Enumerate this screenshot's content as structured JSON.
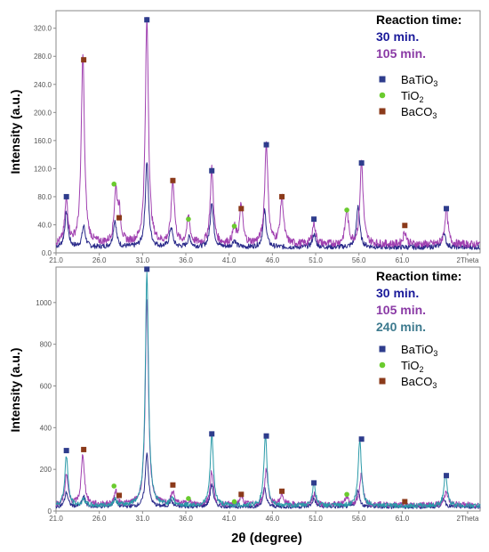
{
  "xlabel": "2θ (degree)",
  "colors": {
    "BaTiO3": "#2e3c8c",
    "TiO2": "#6acb2e",
    "BaCO3": "#8b3a1a",
    "series_30": "#2a2a8a",
    "series_105": "#a040b0",
    "series_240": "#2a9aa8",
    "time_30_text": "#1a1a9a",
    "time_105_text": "#8a3aa5",
    "time_240_text": "#3d7a8e"
  },
  "legend_phases": [
    {
      "main": "BaTiO",
      "sub": "3",
      "marker": "square",
      "color_key": "BaTiO3"
    },
    {
      "main": "TiO",
      "sub": "2",
      "marker": "circle",
      "color_key": "TiO2"
    },
    {
      "main": "BaCO",
      "sub": "3",
      "marker": "square",
      "color_key": "BaCO3"
    }
  ],
  "chart_data": [
    {
      "type": "line",
      "ylabel": "Intensity (a.u.)",
      "legend_title": "Reaction time:",
      "xlim": [
        21.0,
        70.0
      ],
      "ylim": [
        0,
        345
      ],
      "x_ticks": [
        "21.0",
        "26.0",
        "31.0",
        "36.0",
        "41.0",
        "46.0",
        "51.0",
        "56.0",
        "61.0",
        "2Theta"
      ],
      "y_ticks": [
        0,
        40,
        80,
        120,
        160,
        200,
        240,
        280,
        320
      ],
      "y_tick_labels": [
        "0.0",
        "40.0",
        "80.0",
        "120.0",
        "160.0",
        "200.0",
        "240.0",
        "280.0",
        "320.0"
      ],
      "series": [
        {
          "name": "30 min.",
          "color_key": "series_30",
          "baseline": 8,
          "peaks": [
            [
              22.2,
              50
            ],
            [
              24.2,
              30
            ],
            [
              27.8,
              38
            ],
            [
              31.5,
              122
            ],
            [
              34.3,
              28
            ],
            [
              36.4,
              14
            ],
            [
              39.0,
              65
            ],
            [
              41.6,
              10
            ],
            [
              45.1,
              52
            ],
            [
              50.8,
              18
            ],
            [
              55.9,
              60
            ],
            [
              65.8,
              22
            ]
          ]
        },
        {
          "name": "105 min.",
          "color_key": "series_105",
          "baseline": 12,
          "peaks": [
            [
              22.2,
              62
            ],
            [
              24.1,
              270
            ],
            [
              27.9,
              72
            ],
            [
              28.3,
              40
            ],
            [
              31.5,
              320
            ],
            [
              34.5,
              90
            ],
            [
              36.3,
              38
            ],
            [
              39.0,
              107
            ],
            [
              41.6,
              22
            ],
            [
              42.4,
              55
            ],
            [
              45.3,
              145
            ],
            [
              47.1,
              68
            ],
            [
              50.8,
              30
            ],
            [
              54.6,
              48
            ],
            [
              56.3,
              118
            ],
            [
              61.3,
              18
            ],
            [
              66.1,
              50
            ]
          ]
        }
      ],
      "markers": [
        {
          "x": 22.2,
          "y": 80,
          "phase": "BaTiO3"
        },
        {
          "x": 24.2,
          "y": 275,
          "phase": "BaCO3"
        },
        {
          "x": 27.7,
          "y": 98,
          "phase": "TiO2"
        },
        {
          "x": 28.3,
          "y": 50,
          "phase": "BaCO3"
        },
        {
          "x": 31.5,
          "y": 332,
          "phase": "BaTiO3"
        },
        {
          "x": 34.5,
          "y": 103,
          "phase": "BaCO3"
        },
        {
          "x": 36.3,
          "y": 48,
          "phase": "TiO2"
        },
        {
          "x": 39.0,
          "y": 117,
          "phase": "BaTiO3"
        },
        {
          "x": 41.6,
          "y": 38,
          "phase": "TiO2"
        },
        {
          "x": 42.4,
          "y": 63,
          "phase": "BaCO3"
        },
        {
          "x": 45.3,
          "y": 154,
          "phase": "BaTiO3"
        },
        {
          "x": 47.1,
          "y": 80,
          "phase": "BaCO3"
        },
        {
          "x": 50.8,
          "y": 48,
          "phase": "BaTiO3"
        },
        {
          "x": 54.6,
          "y": 61,
          "phase": "TiO2"
        },
        {
          "x": 56.3,
          "y": 128,
          "phase": "BaTiO3"
        },
        {
          "x": 61.3,
          "y": 39,
          "phase": "BaCO3"
        },
        {
          "x": 66.1,
          "y": 63,
          "phase": "BaTiO3"
        }
      ]
    },
    {
      "type": "line",
      "ylabel": "Intensity (a.u.)",
      "legend_title": "Reaction time:",
      "xlim": [
        21.0,
        70.0
      ],
      "ylim": [
        0,
        1170
      ],
      "x_ticks": [
        "21.0",
        "26.0",
        "31.0",
        "36.0",
        "41.0",
        "46.0",
        "51.0",
        "56.0",
        "61.0",
        "2Theta"
      ],
      "y_ticks": [
        0,
        200,
        400,
        600,
        800,
        1000
      ],
      "y_tick_labels": [
        "0",
        "200",
        "400",
        "600",
        "800",
        "1000"
      ],
      "series": [
        {
          "name": "30 min.",
          "color_key": "series_30",
          "baseline": 20,
          "peaks": [
            [
              22.2,
              70
            ],
            [
              24.2,
              50
            ],
            [
              27.8,
              40
            ],
            [
              31.5,
              260
            ],
            [
              34.3,
              30
            ],
            [
              39.0,
              110
            ],
            [
              45.1,
              90
            ],
            [
              50.8,
              40
            ],
            [
              55.9,
              80
            ],
            [
              65.8,
              40
            ]
          ]
        },
        {
          "name": "105 min.",
          "color_key": "series_105",
          "baseline": 30,
          "peaks": [
            [
              22.2,
              140
            ],
            [
              24.1,
              240
            ],
            [
              27.9,
              60
            ],
            [
              31.5,
              980
            ],
            [
              34.5,
              60
            ],
            [
              36.3,
              20
            ],
            [
              39.0,
              160
            ],
            [
              42.4,
              40
            ],
            [
              45.3,
              170
            ],
            [
              47.1,
              50
            ],
            [
              50.8,
              50
            ],
            [
              54.6,
              40
            ],
            [
              56.3,
              150
            ],
            [
              66.1,
              70
            ]
          ]
        },
        {
          "name": "240 min.",
          "color_key": "series_240",
          "baseline": 25,
          "peaks": [
            [
              22.2,
              240
            ],
            [
              24.2,
              30
            ],
            [
              27.8,
              30
            ],
            [
              31.5,
              1120
            ],
            [
              34.4,
              40
            ],
            [
              39.0,
              340
            ],
            [
              45.2,
              330
            ],
            [
              50.8,
              110
            ],
            [
              56.1,
              320
            ],
            [
              66.0,
              150
            ]
          ]
        }
      ],
      "markers": [
        {
          "x": 22.2,
          "y": 290,
          "phase": "BaTiO3"
        },
        {
          "x": 24.2,
          "y": 295,
          "phase": "BaCO3"
        },
        {
          "x": 27.7,
          "y": 120,
          "phase": "TiO2"
        },
        {
          "x": 28.3,
          "y": 75,
          "phase": "BaCO3"
        },
        {
          "x": 31.5,
          "y": 1160,
          "phase": "BaTiO3"
        },
        {
          "x": 34.5,
          "y": 125,
          "phase": "BaCO3"
        },
        {
          "x": 36.3,
          "y": 60,
          "phase": "TiO2"
        },
        {
          "x": 39.0,
          "y": 370,
          "phase": "BaTiO3"
        },
        {
          "x": 41.6,
          "y": 45,
          "phase": "TiO2"
        },
        {
          "x": 42.4,
          "y": 80,
          "phase": "BaCO3"
        },
        {
          "x": 45.3,
          "y": 360,
          "phase": "BaTiO3"
        },
        {
          "x": 47.1,
          "y": 95,
          "phase": "BaCO3"
        },
        {
          "x": 50.8,
          "y": 135,
          "phase": "BaTiO3"
        },
        {
          "x": 54.6,
          "y": 80,
          "phase": "TiO2"
        },
        {
          "x": 56.3,
          "y": 345,
          "phase": "BaTiO3"
        },
        {
          "x": 61.3,
          "y": 45,
          "phase": "BaCO3"
        },
        {
          "x": 66.1,
          "y": 170,
          "phase": "BaTiO3"
        }
      ]
    }
  ]
}
